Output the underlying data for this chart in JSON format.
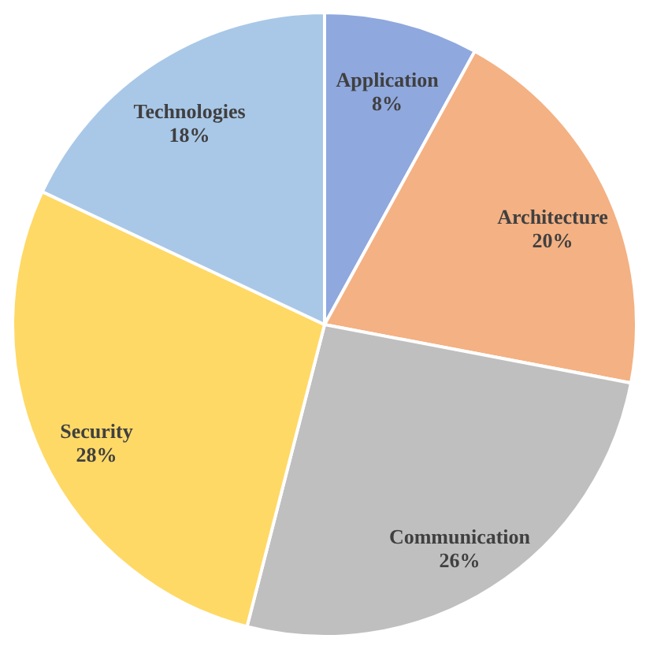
{
  "chart_data": {
    "type": "pie",
    "categories": [
      "Application",
      "Architecture",
      "Communication",
      "Security",
      "Technologies"
    ],
    "values": [
      8,
      20,
      26,
      28,
      18
    ],
    "value_labels": [
      "8%",
      "20%",
      "26%",
      "28%",
      "18%"
    ],
    "colors": [
      "#8fa8de",
      "#f4b183",
      "#bfbfbf",
      "#ffd966",
      "#a9c8e8"
    ],
    "legend": false
  }
}
